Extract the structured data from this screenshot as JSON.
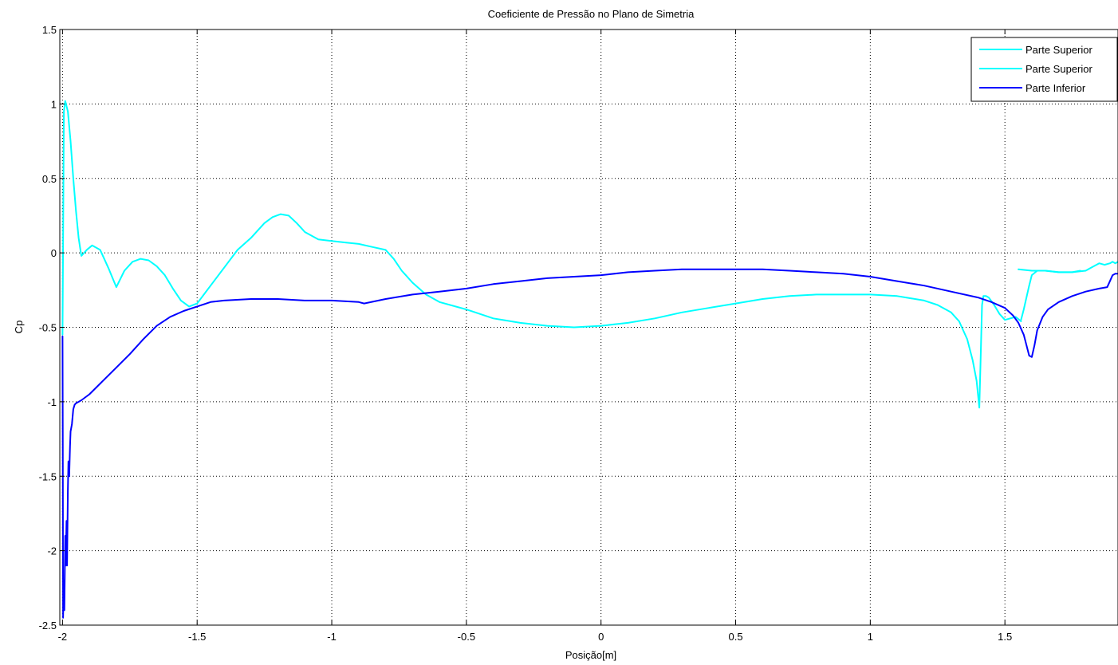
{
  "chart_data": {
    "type": "line",
    "title": "Coeficiente de Pressão no Plano de Simetria",
    "xlabel": "Posição[m]",
    "ylabel": "Cp",
    "xlim": [
      -2.01,
      1.92
    ],
    "ylim": [
      -2.5,
      1.5
    ],
    "grid": true,
    "legend_position": "top-right",
    "x_ticks": [
      -2,
      -1.5,
      -1,
      -0.5,
      0,
      0.5,
      1,
      1.5
    ],
    "x_tick_labels": [
      "-2",
      "-1.5",
      "-1",
      "-0.5",
      "0",
      "0.5",
      "1",
      "1.5"
    ],
    "y_ticks": [
      1.5,
      1,
      0.5,
      0,
      -0.5,
      -1,
      -1.5,
      -2,
      -2.5
    ],
    "y_tick_labels": [
      "1.5",
      "1",
      "0.5",
      "0",
      "-0.5",
      "-1",
      "-1.5",
      "-2",
      "-2.5"
    ],
    "series": [
      {
        "name": "Parte Superior",
        "color": "#00ffff",
        "x": [
          -2.0,
          -1.995,
          -1.99,
          -1.98,
          -1.97,
          -1.96,
          -1.95,
          -1.94,
          -1.93,
          -1.91,
          -1.89,
          -1.86,
          -1.83,
          -1.8,
          -1.77,
          -1.74,
          -1.71,
          -1.68,
          -1.65,
          -1.62,
          -1.59,
          -1.56,
          -1.53,
          -1.5,
          -1.45,
          -1.4,
          -1.35,
          -1.3,
          -1.25,
          -1.22,
          -1.19,
          -1.16,
          -1.13,
          -1.1,
          -1.05,
          -1.0,
          -0.95,
          -0.9,
          -0.85,
          -0.8,
          -0.77,
          -0.74,
          -0.7,
          -0.65,
          -0.6,
          -0.5,
          -0.4,
          -0.3,
          -0.2,
          -0.1,
          0.0,
          0.1,
          0.2,
          0.3,
          0.4,
          0.5,
          0.6,
          0.7,
          0.8,
          0.9,
          1.0,
          1.1,
          1.2,
          1.25,
          1.3,
          1.33,
          1.36,
          1.38,
          1.395,
          1.405,
          1.41,
          1.415,
          1.42,
          1.43,
          1.44,
          1.46,
          1.48,
          1.5,
          1.52,
          1.54,
          1.56
        ],
        "values": [
          -0.55,
          0.95,
          1.02,
          0.95,
          0.75,
          0.5,
          0.28,
          0.1,
          -0.02,
          0.02,
          0.05,
          0.02,
          -0.1,
          -0.23,
          -0.12,
          -0.06,
          -0.04,
          -0.05,
          -0.09,
          -0.15,
          -0.24,
          -0.32,
          -0.36,
          -0.34,
          -0.22,
          -0.1,
          0.02,
          0.1,
          0.2,
          0.24,
          0.26,
          0.25,
          0.2,
          0.14,
          0.09,
          0.08,
          0.07,
          0.06,
          0.04,
          0.02,
          -0.04,
          -0.12,
          -0.2,
          -0.28,
          -0.33,
          -0.38,
          -0.44,
          -0.47,
          -0.49,
          -0.5,
          -0.49,
          -0.47,
          -0.44,
          -0.4,
          -0.37,
          -0.34,
          -0.31,
          -0.29,
          -0.28,
          -0.28,
          -0.28,
          -0.29,
          -0.32,
          -0.35,
          -0.4,
          -0.46,
          -0.58,
          -0.72,
          -0.86,
          -1.04,
          -0.7,
          -0.35,
          -0.29,
          -0.29,
          -0.3,
          -0.35,
          -0.41,
          -0.45,
          -0.44,
          -0.43,
          -0.46
        ]
      },
      {
        "name": "Parte Superior",
        "color": "#00ffff",
        "x": [
          1.56,
          1.57,
          1.58,
          1.59,
          1.6,
          1.62,
          1.65,
          1.7,
          1.75,
          1.8,
          1.82,
          1.85,
          1.87,
          1.89,
          1.9,
          1.91,
          1.92
        ],
        "values": [
          -0.45,
          -0.38,
          -0.3,
          -0.22,
          -0.15,
          -0.12,
          -0.12,
          -0.13,
          -0.13,
          -0.12,
          -0.1,
          -0.07,
          -0.08,
          -0.07,
          -0.06,
          -0.07,
          -0.06
        ]
      },
      {
        "name": "Parte Superior",
        "color": "#00ffff",
        "x": [
          1.55,
          1.6,
          1.65,
          1.7,
          1.75,
          1.78
        ],
        "values": [
          -0.11,
          -0.12,
          -0.12,
          -0.13,
          -0.13,
          -0.12
        ]
      },
      {
        "name": "Parte Inferior",
        "color": "#0000ff",
        "x": [
          -2.0,
          -1.999,
          -1.998,
          -1.995,
          -1.993,
          -1.99,
          -1.988,
          -1.985,
          -1.983,
          -1.98,
          -1.978,
          -1.975,
          -1.972,
          -1.97,
          -1.965,
          -1.96,
          -1.955,
          -1.95,
          -1.93,
          -1.9,
          -1.85,
          -1.8,
          -1.75,
          -1.7,
          -1.65,
          -1.6,
          -1.55,
          -1.5,
          -1.45,
          -1.4,
          -1.3,
          -1.2,
          -1.1,
          -1.0,
          -0.9,
          -0.88,
          -0.8,
          -0.7,
          -0.6,
          -0.5,
          -0.4,
          -0.3,
          -0.2,
          -0.1,
          0.0,
          0.1,
          0.2,
          0.3,
          0.4,
          0.5,
          0.6,
          0.7,
          0.8,
          0.9,
          1.0,
          1.1,
          1.2,
          1.3,
          1.4,
          1.45,
          1.5,
          1.53,
          1.55,
          1.57,
          1.58,
          1.59,
          1.6,
          1.61,
          1.62,
          1.64,
          1.66,
          1.7,
          1.75,
          1.8,
          1.85,
          1.88,
          1.89,
          1.9,
          1.91,
          1.92
        ],
        "values": [
          -0.56,
          -1.2,
          -2.45,
          -2.2,
          -2.4,
          -1.9,
          -2.1,
          -1.8,
          -2.1,
          -1.6,
          -1.4,
          -1.5,
          -1.3,
          -1.2,
          -1.15,
          -1.05,
          -1.02,
          -1.01,
          -0.99,
          -0.95,
          -0.86,
          -0.77,
          -0.68,
          -0.58,
          -0.49,
          -0.43,
          -0.39,
          -0.36,
          -0.33,
          -0.32,
          -0.31,
          -0.31,
          -0.32,
          -0.32,
          -0.33,
          -0.34,
          -0.31,
          -0.28,
          -0.26,
          -0.24,
          -0.21,
          -0.19,
          -0.17,
          -0.16,
          -0.15,
          -0.13,
          -0.12,
          -0.11,
          -0.11,
          -0.11,
          -0.11,
          -0.12,
          -0.13,
          -0.14,
          -0.16,
          -0.19,
          -0.22,
          -0.26,
          -0.3,
          -0.33,
          -0.37,
          -0.42,
          -0.47,
          -0.55,
          -0.62,
          -0.69,
          -0.7,
          -0.62,
          -0.52,
          -0.43,
          -0.38,
          -0.33,
          -0.29,
          -0.26,
          -0.24,
          -0.23,
          -0.19,
          -0.15,
          -0.14,
          -0.14
        ]
      }
    ],
    "legend": [
      {
        "label": "Parte Superior",
        "color": "#00ffff"
      },
      {
        "label": "Parte Superior",
        "color": "#00ffff"
      },
      {
        "label": "Parte Inferior",
        "color": "#0000ff"
      }
    ]
  }
}
